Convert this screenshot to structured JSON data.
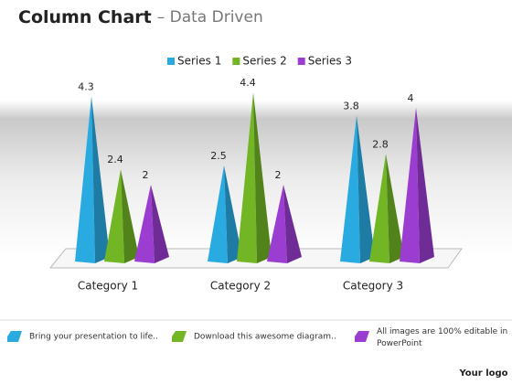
{
  "chart_data": {
    "type": "pyramid",
    "title": "Column Chart",
    "subtitle": "– Data Driven",
    "categories": [
      "Category 1",
      "Category 2",
      "Category 3"
    ],
    "series": [
      {
        "name": "Series 1",
        "color": "#29abe2",
        "values": [
          4.3,
          2.5,
          3.8
        ]
      },
      {
        "name": "Series 2",
        "color": "#72b626",
        "values": [
          2.4,
          4.4,
          2.8
        ]
      },
      {
        "name": "Series 3",
        "color": "#9b3dd1",
        "values": [
          2,
          2,
          4
        ]
      }
    ]
  },
  "footer": {
    "notes": [
      "Bring your presentation to life..",
      "Download this  awesome diagram..",
      "All images are 100% editable in PowerPoint"
    ],
    "logo": "Your logo"
  }
}
